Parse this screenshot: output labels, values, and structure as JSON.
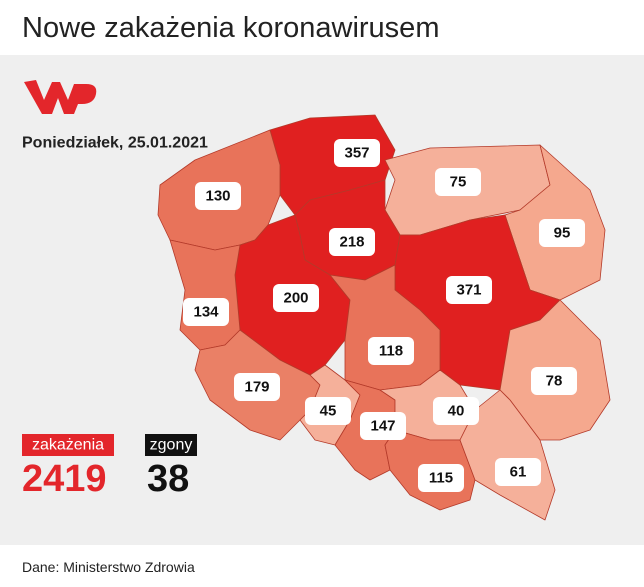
{
  "title": "Nowe zakażenia koronawirusem",
  "date": "Poniedziałek, 25.01.2021",
  "regions": [
    357,
    75,
    130,
    95,
    218,
    200,
    371,
    134,
    118,
    78,
    179,
    45,
    147,
    40,
    115,
    61
  ],
  "totals": {
    "cases": {
      "label": "zakażenia",
      "value": 2419
    },
    "deaths": {
      "label": "zgony",
      "value": 38
    }
  },
  "source": "Dane: Ministerstwo Zdrowia"
}
